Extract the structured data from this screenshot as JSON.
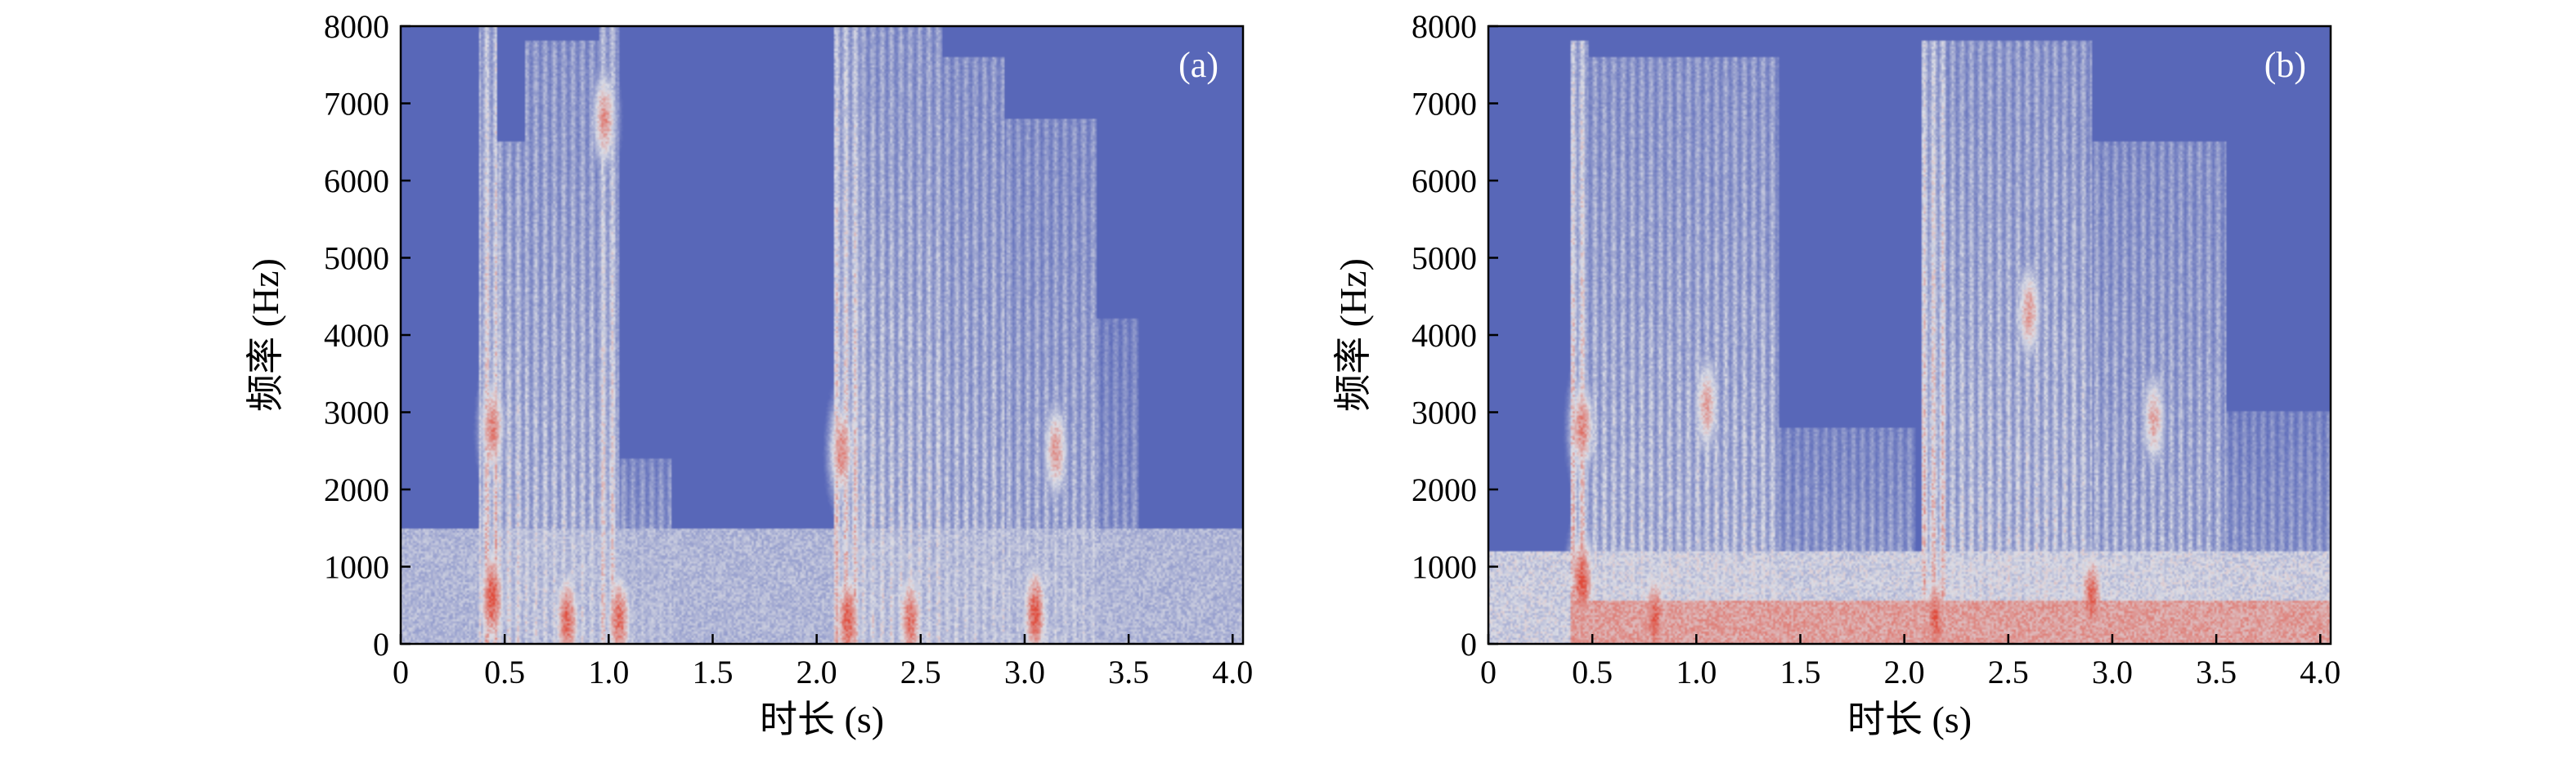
{
  "chart_data": [
    {
      "type": "heatmap",
      "panel_label": "(a)",
      "xlabel": "时长 (s)",
      "ylabel": "频率 (Hz)",
      "xlim": [
        0,
        4.05
      ],
      "ylim": [
        0,
        8000
      ],
      "x_ticks": [
        "0",
        "0.5",
        "1.0",
        "1.5",
        "2.0",
        "2.5",
        "3.0",
        "3.5",
        "4.0"
      ],
      "y_ticks": [
        "0",
        "1000",
        "2000",
        "3000",
        "4000",
        "5000",
        "6000",
        "7000",
        "8000"
      ],
      "colormap": {
        "low": "#3f51b0",
        "mid": "#dcdde5",
        "high": "#e04a3a"
      },
      "background_level": 0.08,
      "noise_floor": {
        "fmax": 1500,
        "level": 0.36
      },
      "bursts": [
        {
          "t0": 0.38,
          "t1": 0.46,
          "fmax": 8000,
          "level": 0.7
        },
        {
          "t0": 0.46,
          "t1": 0.6,
          "fmax": 6500,
          "level": 0.55
        },
        {
          "t0": 0.6,
          "t1": 0.95,
          "fmax": 7800,
          "level": 0.5
        },
        {
          "t0": 0.95,
          "t1": 1.05,
          "fmax": 8000,
          "level": 0.62
        },
        {
          "t0": 1.05,
          "t1": 1.3,
          "fmax": 2400,
          "level": 0.42
        },
        {
          "t0": 2.08,
          "t1": 2.22,
          "fmax": 8000,
          "level": 0.68
        },
        {
          "t0": 2.22,
          "t1": 2.6,
          "fmax": 8000,
          "level": 0.52
        },
        {
          "t0": 2.6,
          "t1": 2.9,
          "fmax": 7600,
          "level": 0.48
        },
        {
          "t0": 2.9,
          "t1": 3.35,
          "fmax": 6800,
          "level": 0.45
        },
        {
          "t0": 3.35,
          "t1": 3.55,
          "fmax": 4200,
          "level": 0.36
        }
      ],
      "hotspots": [
        {
          "t": 0.44,
          "f": 600,
          "level": 0.95
        },
        {
          "t": 0.44,
          "f": 2800,
          "level": 0.8
        },
        {
          "t": 0.8,
          "f": 300,
          "level": 0.9
        },
        {
          "t": 1.05,
          "f": 300,
          "level": 0.88
        },
        {
          "t": 0.98,
          "f": 6800,
          "level": 0.75
        },
        {
          "t": 2.15,
          "f": 300,
          "level": 0.92
        },
        {
          "t": 2.12,
          "f": 2500,
          "level": 0.8
        },
        {
          "t": 2.45,
          "f": 300,
          "level": 0.86
        },
        {
          "t": 3.05,
          "f": 400,
          "level": 0.92
        },
        {
          "t": 3.15,
          "f": 2500,
          "level": 0.72
        }
      ]
    },
    {
      "type": "heatmap",
      "panel_label": "(b)",
      "xlabel": "时长 (s)",
      "ylabel": "频率 (Hz)",
      "xlim": [
        0,
        4.05
      ],
      "ylim": [
        0,
        8000
      ],
      "x_ticks": [
        "0",
        "0.5",
        "1.0",
        "1.5",
        "2.0",
        "2.5",
        "3.0",
        "3.5",
        "4.0"
      ],
      "y_ticks": [
        "0",
        "1000",
        "2000",
        "3000",
        "4000",
        "5000",
        "6000",
        "7000",
        "8000"
      ],
      "colormap": {
        "low": "#3f51b0",
        "mid": "#dcdde5",
        "high": "#e04a3a"
      },
      "background_level": 0.08,
      "noise_floor": {
        "fmax": 1200,
        "level": 0.45
      },
      "low_band": {
        "fmax": 550,
        "level": 0.75
      },
      "bursts": [
        {
          "t0": 0.4,
          "t1": 0.48,
          "fmax": 7800,
          "level": 0.72
        },
        {
          "t0": 0.48,
          "t1": 1.4,
          "fmax": 7600,
          "level": 0.5
        },
        {
          "t0": 1.4,
          "t1": 2.05,
          "fmax": 2800,
          "level": 0.4
        },
        {
          "t0": 2.08,
          "t1": 2.2,
          "fmax": 7800,
          "level": 0.7
        },
        {
          "t0": 2.2,
          "t1": 2.9,
          "fmax": 7800,
          "level": 0.52
        },
        {
          "t0": 2.9,
          "t1": 3.55,
          "fmax": 6500,
          "level": 0.46
        },
        {
          "t0": 3.55,
          "t1": 4.05,
          "fmax": 3000,
          "level": 0.38
        }
      ],
      "hotspots": [
        {
          "t": 0.45,
          "f": 800,
          "level": 0.95
        },
        {
          "t": 0.45,
          "f": 2800,
          "level": 0.8
        },
        {
          "t": 0.8,
          "f": 300,
          "level": 0.92
        },
        {
          "t": 1.05,
          "f": 3100,
          "level": 0.7
        },
        {
          "t": 2.15,
          "f": 300,
          "level": 0.92
        },
        {
          "t": 2.6,
          "f": 4300,
          "level": 0.72
        },
        {
          "t": 2.9,
          "f": 600,
          "level": 0.9
        },
        {
          "t": 3.2,
          "f": 2900,
          "level": 0.68
        }
      ]
    }
  ]
}
